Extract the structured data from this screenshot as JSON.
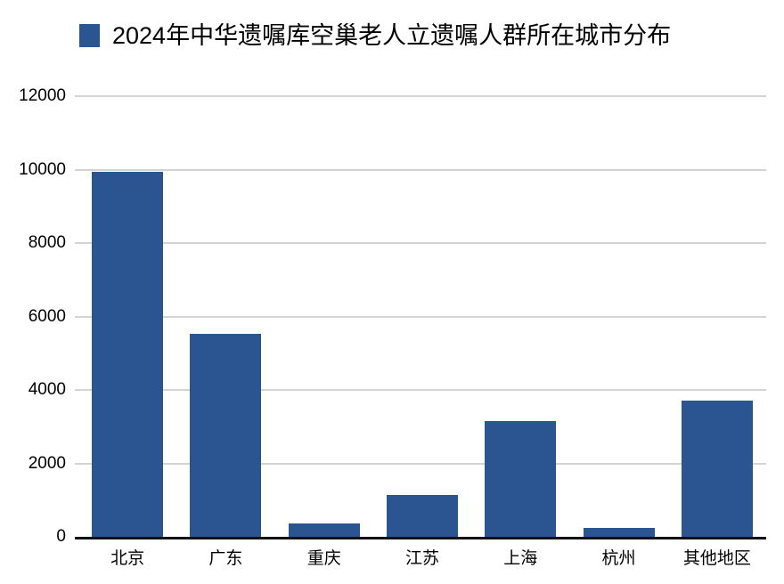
{
  "chart_data": {
    "type": "bar",
    "title": "2024年中华遗嘱库空巢老人立遗嘱人群所在城市分布",
    "legend": [
      "2024年中华遗嘱库空巢老人立遗嘱人群所在城市分布"
    ],
    "legend_position": "top-left",
    "categories": [
      "北京",
      "广东",
      "重庆",
      "江苏",
      "上海",
      "杭州",
      "其他地区"
    ],
    "values": [
      9950,
      5520,
      370,
      1140,
      3160,
      240,
      3710
    ],
    "xlabel": "",
    "ylabel": "",
    "ylim": [
      0,
      12000
    ],
    "y_ticks": [
      0,
      2000,
      4000,
      6000,
      8000,
      10000,
      12000
    ],
    "grid": true,
    "colors": {
      "bar": "#2a5591",
      "gridline": "#d4d4d4",
      "axis": "#111111",
      "text": "#000000",
      "background": "#ffffff"
    }
  }
}
